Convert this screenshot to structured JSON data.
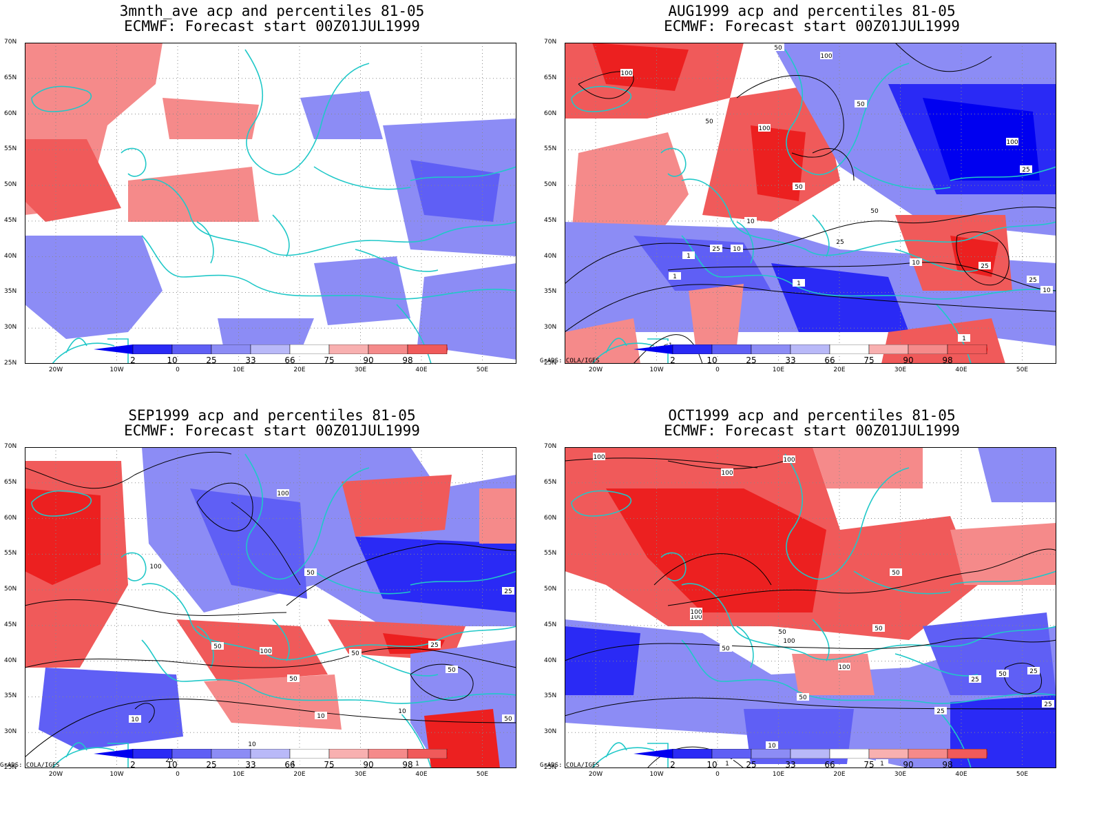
{
  "panels": [
    {
      "title1": "3mnth_ave acp and percentiles 81-05",
      "title2": "ECMWF: Forecast start 00Z01JUL1999",
      "credit": ""
    },
    {
      "title1": "AUG1999 acp and percentiles 81-05",
      "title2": "ECMWF: Forecast start 00Z01JUL1999",
      "credit": "GrADS: COLA/IGES"
    },
    {
      "title1": "SEP1999 acp and percentiles 81-05",
      "title2": "ECMWF: Forecast start 00Z01JUL1999",
      "credit": "GrADS: COLA/IGES"
    },
    {
      "title1": "OCT1999 acp and percentiles 81-05",
      "title2": "ECMWF: Forecast start 00Z01JUL1999",
      "credit": "GrADS: COLA/IGES"
    }
  ],
  "lat_labels": [
    "70N",
    "65N",
    "60N",
    "55N",
    "50N",
    "45N",
    "40N",
    "35N",
    "30N",
    "25N"
  ],
  "lon_labels": [
    "20W",
    "10W",
    "0",
    "10E",
    "20E",
    "30E",
    "40E",
    "50E"
  ],
  "colorbar": {
    "ticks": [
      "2",
      "10",
      "25",
      "33",
      "66",
      "75",
      "90",
      "98"
    ],
    "colors": [
      "#0000f0",
      "#2a2af5",
      "#5f5ff5",
      "#8c8cf5",
      "#b9b9f8",
      "#ffffff",
      "#f8b0b0",
      "#f58a8a",
      "#f05a5a",
      "#ec2020",
      "#e80000"
    ]
  },
  "contour_labels": {
    "aug": [
      "50",
      "100",
      "100",
      "50",
      "100",
      "50",
      "100",
      "25",
      "50",
      "50",
      "10",
      "25",
      "25",
      "10",
      "1",
      "10",
      "25",
      "25",
      "10",
      "1",
      "1",
      "<1",
      "1"
    ],
    "sep": [
      "100",
      "100",
      "50",
      "50",
      "100",
      "50",
      "50",
      "25",
      "50",
      "25",
      "10",
      "50",
      "10",
      "10",
      "25",
      "10",
      "1",
      "1"
    ],
    "oct": [
      "100",
      "100",
      "100",
      "100",
      "100",
      "50",
      "50",
      "100",
      "50",
      "100",
      "50",
      "25",
      "50",
      "25",
      "50",
      "25",
      "10",
      "25",
      "10",
      "1",
      "1"
    ]
  },
  "colors": {
    "coast": "#20c8c8",
    "grid": "#888888",
    "contour": "#000000"
  }
}
